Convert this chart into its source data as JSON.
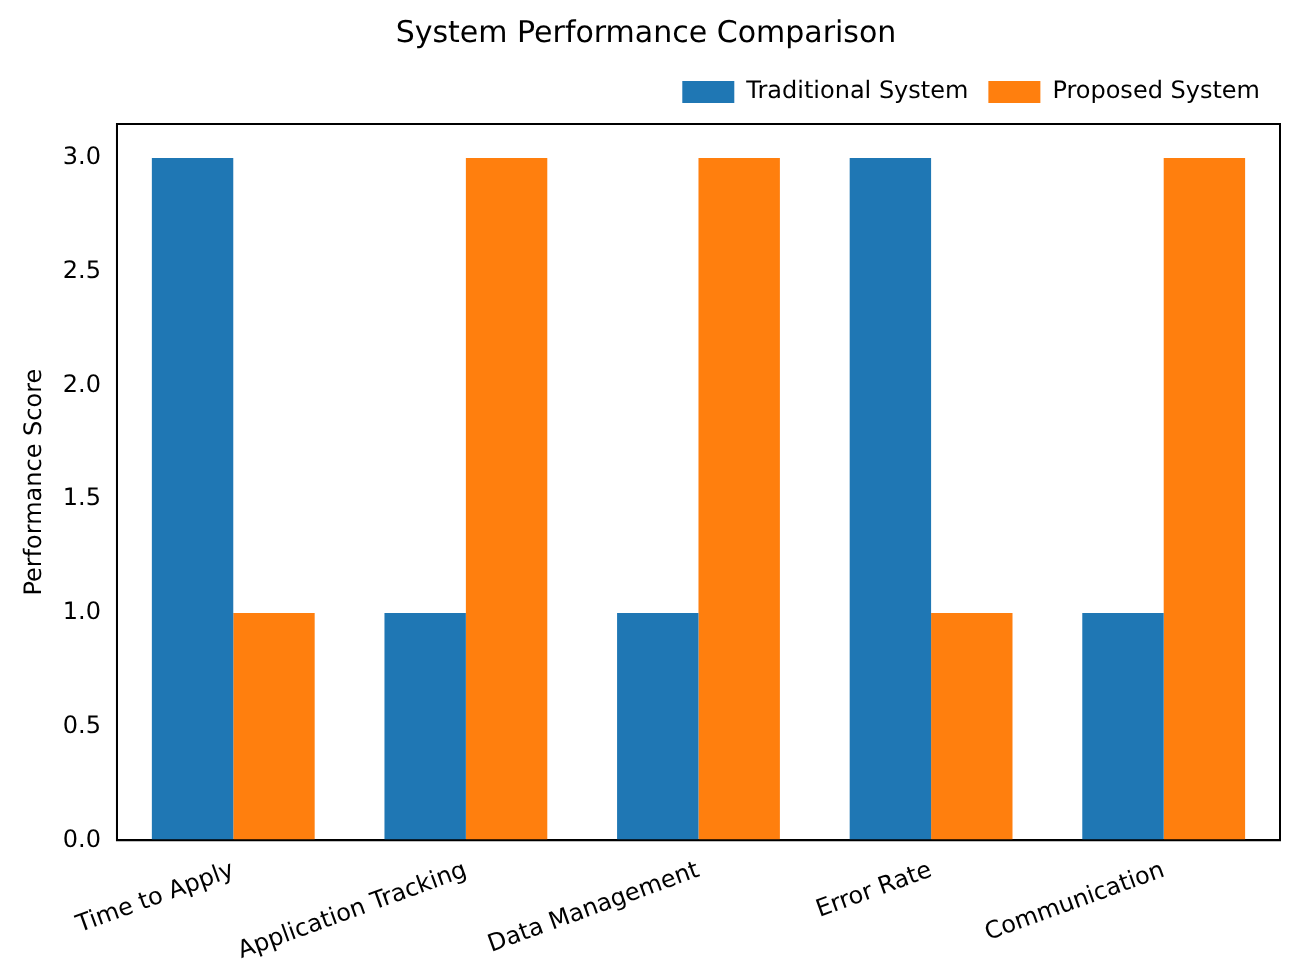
{
  "chart_data": {
    "type": "bar",
    "title": "System Performance Comparison",
    "ylabel": "Performance Score",
    "categories": [
      "Time to Apply",
      "Application Tracking",
      "Data Management",
      "Error Rate",
      "Communication"
    ],
    "series": [
      {
        "name": "Traditional System",
        "color": "#1f77b4",
        "values": [
          3,
          1,
          1,
          3,
          1
        ]
      },
      {
        "name": "Proposed System",
        "color": "#ff7f0e",
        "values": [
          1,
          3,
          3,
          1,
          3
        ]
      }
    ],
    "ylim": [
      0,
      3.15
    ],
    "yticks": [
      {
        "value": 0,
        "label": "0.0"
      },
      0.5,
      {
        "value": 1,
        "label": "1.0"
      },
      1.5,
      {
        "value": 2,
        "label": "2.0"
      },
      2.5,
      {
        "value": 3,
        "label": "3.0"
      }
    ],
    "grid": false,
    "legend": "top right"
  }
}
